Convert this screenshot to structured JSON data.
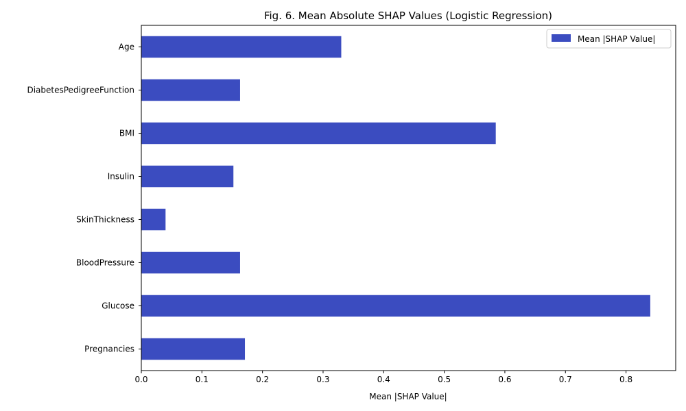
{
  "chart_data": {
    "type": "bar",
    "orientation": "horizontal",
    "title": "Fig. 6. Mean Absolute SHAP Values (Logistic Regression)",
    "xlabel": "Mean |SHAP Value|",
    "ylabel": "",
    "categories": [
      "Pregnancies",
      "Glucose",
      "BloodPressure",
      "SkinThickness",
      "Insulin",
      "BMI",
      "DiabetesPedigreeFunction",
      "Age"
    ],
    "series": [
      {
        "name": "Mean |SHAP Value|",
        "color": "#3b4cc0",
        "values": [
          0.171,
          0.84,
          0.163,
          0.04,
          0.152,
          0.585,
          0.163,
          0.33
        ]
      }
    ],
    "xlim": [
      0,
      0.882
    ],
    "xticks": [
      "0.0",
      "0.1",
      "0.2",
      "0.3",
      "0.4",
      "0.5",
      "0.6",
      "0.7",
      "0.8"
    ],
    "grid": false,
    "legend_position": "top-right"
  }
}
